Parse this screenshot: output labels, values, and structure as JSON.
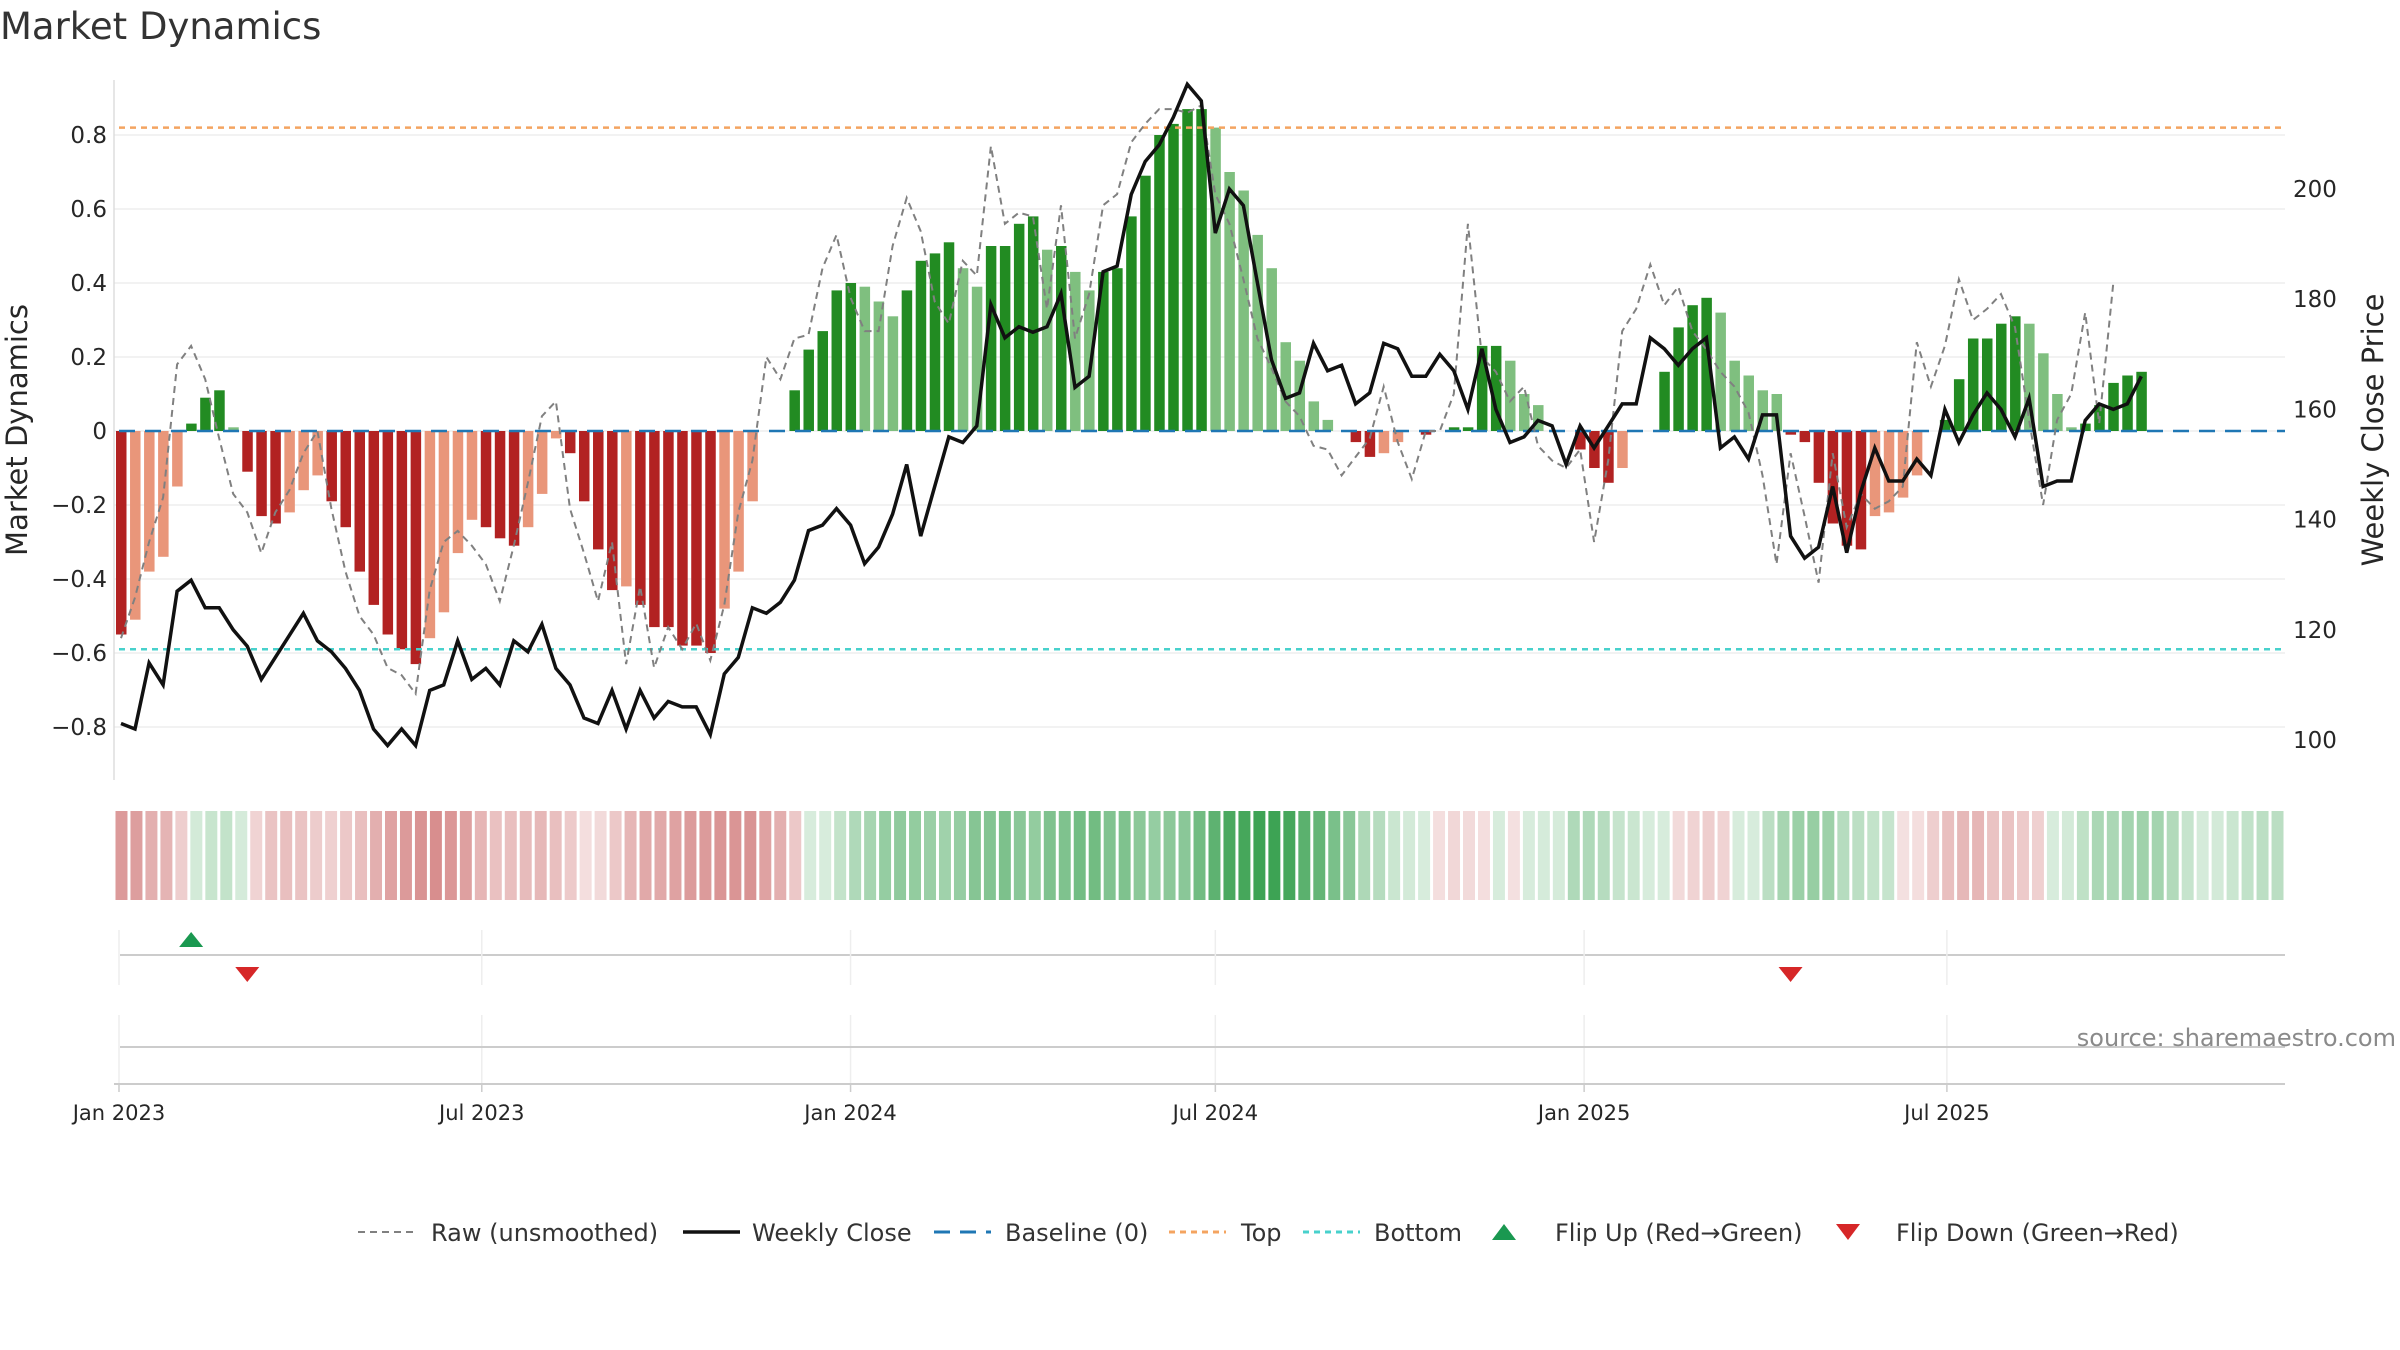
{
  "title": "Market Dynamics",
  "source": "source: sharemaestro.com",
  "legend": [
    "Raw (unsmoothed)",
    "Weekly Close",
    "Baseline (0)",
    "Top",
    "Bottom",
    "Flip Up (Red→Green)",
    "Flip Down (Green→Red)"
  ],
  "colors": {
    "strong_green": "#228b22",
    "light_green": "#7fbf7f",
    "strong_red": "#b22222",
    "light_red": "#e9967a",
    "top": "#f4a460",
    "bottom": "#48d1cc",
    "baseline": "#1f77b4",
    "flip_up": "#1a9850",
    "flip_down": "#d62728"
  },
  "chart_data": {
    "type": "bar",
    "title": "Market Dynamics",
    "ylabel": "Market Dynamics",
    "y2label": "Weekly Close Price",
    "ylim": [
      -0.95,
      0.95
    ],
    "y2lim": [
      94,
      222
    ],
    "yticks": [
      -0.8,
      -0.6,
      -0.4,
      -0.2,
      0,
      0.2,
      0.4,
      0.6,
      0.8
    ],
    "y2ticks": [
      100,
      120,
      140,
      160,
      180,
      200
    ],
    "top_line": 0.82,
    "bottom_line": -0.59,
    "date_ticks": [
      "Jan 2023",
      "Jul 2023",
      "Jan 2024",
      "Jul 2024",
      "Jan 2025",
      "Jul 2025"
    ],
    "start_date": "2023-01-02",
    "legend_position": "bottom",
    "market_dynamics": [
      -0.55,
      -0.51,
      -0.38,
      -0.34,
      -0.15,
      0.02,
      0.09,
      0.11,
      0.01,
      -0.11,
      -0.23,
      -0.25,
      -0.22,
      -0.16,
      -0.12,
      -0.19,
      -0.26,
      -0.38,
      -0.47,
      -0.55,
      -0.59,
      -0.63,
      -0.56,
      -0.49,
      -0.33,
      -0.24,
      -0.26,
      -0.29,
      -0.31,
      -0.26,
      -0.17,
      -0.02,
      -0.06,
      -0.19,
      -0.32,
      -0.43,
      -0.42,
      -0.47,
      -0.53,
      -0.53,
      -0.58,
      -0.58,
      -0.6,
      -0.48,
      -0.38,
      -0.19,
      0.0,
      0.0,
      0.11,
      0.22,
      0.27,
      0.38,
      0.4,
      0.39,
      0.35,
      0.31,
      0.38,
      0.46,
      0.48,
      0.51,
      0.44,
      0.39,
      0.5,
      0.5,
      0.56,
      0.58,
      0.49,
      0.5,
      0.43,
      0.38,
      0.43,
      0.44,
      0.58,
      0.69,
      0.8,
      0.83,
      0.87,
      0.87,
      0.82,
      0.7,
      0.65,
      0.53,
      0.44,
      0.24,
      0.19,
      0.08,
      0.03,
      0.0,
      -0.03,
      -0.07,
      -0.06,
      -0.03,
      0.0,
      -0.01,
      0.0,
      0.01,
      0.01,
      0.23,
      0.23,
      0.19,
      0.1,
      0.07,
      0.0,
      0.0,
      -0.05,
      -0.1,
      -0.14,
      -0.1,
      0.0,
      0.0,
      0.16,
      0.28,
      0.34,
      0.36,
      0.32,
      0.19,
      0.15,
      0.11,
      0.1,
      -0.01,
      -0.03,
      -0.14,
      -0.25,
      -0.31,
      -0.32,
      -0.23,
      -0.22,
      -0.18,
      -0.12,
      0.0,
      0.03,
      0.14,
      0.25,
      0.25,
      0.29,
      0.31,
      0.29,
      0.21,
      0.1,
      0.01,
      0.02,
      0.07,
      0.13,
      0.15,
      0.16
    ],
    "raw": [
      -0.56,
      -0.45,
      -0.3,
      -0.18,
      0.18,
      0.23,
      0.14,
      -0.02,
      -0.17,
      -0.22,
      -0.33,
      -0.22,
      -0.16,
      -0.06,
      0.0,
      -0.21,
      -0.38,
      -0.5,
      -0.55,
      -0.64,
      -0.66,
      -0.71,
      -0.43,
      -0.3,
      -0.27,
      -0.31,
      -0.36,
      -0.46,
      -0.31,
      -0.14,
      0.04,
      0.08,
      -0.21,
      -0.33,
      -0.46,
      -0.3,
      -0.63,
      -0.42,
      -0.64,
      -0.53,
      -0.59,
      -0.52,
      -0.62,
      -0.47,
      -0.22,
      -0.08,
      0.2,
      0.14,
      0.25,
      0.26,
      0.44,
      0.53,
      0.36,
      0.27,
      0.27,
      0.5,
      0.63,
      0.54,
      0.35,
      0.29,
      0.46,
      0.42,
      0.77,
      0.56,
      0.59,
      0.58,
      0.33,
      0.61,
      0.25,
      0.37,
      0.61,
      0.64,
      0.78,
      0.83,
      0.87,
      0.87,
      0.86,
      0.88,
      0.64,
      0.56,
      0.41,
      0.25,
      0.17,
      0.08,
      0.04,
      -0.04,
      -0.05,
      -0.12,
      -0.07,
      -0.02,
      0.12,
      -0.03,
      -0.13,
      0.0,
      0.0,
      0.1,
      0.56,
      0.2,
      0.16,
      0.08,
      0.12,
      -0.04,
      -0.08,
      -0.1,
      -0.05,
      -0.3,
      -0.08,
      0.27,
      0.33,
      0.45,
      0.34,
      0.39,
      0.27,
      0.22,
      0.16,
      0.12,
      0.05,
      -0.12,
      -0.36,
      -0.06,
      -0.23,
      -0.41,
      -0.06,
      -0.26,
      -0.17,
      -0.21,
      -0.19,
      -0.15,
      0.24,
      0.12,
      0.23,
      0.41,
      0.3,
      0.33,
      0.37,
      0.28,
      0.03,
      -0.2,
      0.03,
      0.1,
      0.32,
      0.02,
      0.4
    ]
  }
}
